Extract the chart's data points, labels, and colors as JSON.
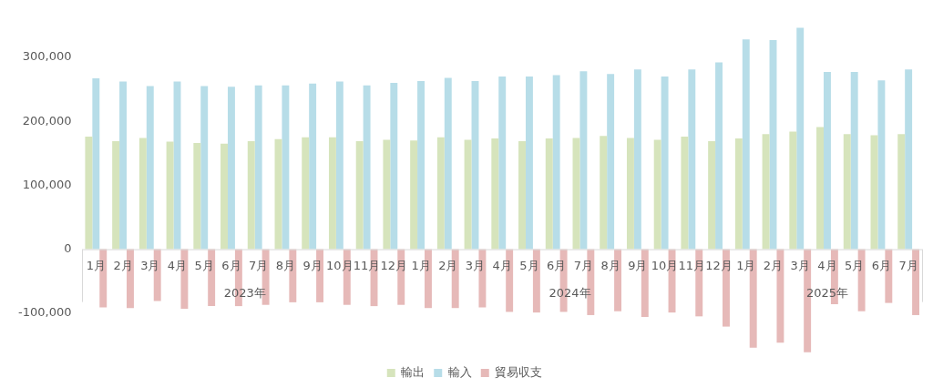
{
  "chart_data": {
    "type": "bar",
    "categories": [
      "1月",
      "2月",
      "3月",
      "4月",
      "5月",
      "6月",
      "7月",
      "8月",
      "9月",
      "10月",
      "11月",
      "12月",
      "1月",
      "2月",
      "3月",
      "4月",
      "5月",
      "6月",
      "7月",
      "8月",
      "9月",
      "10月",
      "11月",
      "12月",
      "1月",
      "2月",
      "3月",
      "4月",
      "5月",
      "6月",
      "7月"
    ],
    "annotations": [
      "2023年",
      "2024年",
      "2025年"
    ],
    "series": [
      {
        "name": "輸出",
        "color": "#d6e4bc",
        "values": [
          176000,
          169000,
          174000,
          168000,
          166000,
          165000,
          169000,
          172000,
          175000,
          175000,
          169000,
          171000,
          170000,
          175000,
          171000,
          173000,
          169000,
          173000,
          174000,
          177000,
          174000,
          171000,
          176000,
          169000,
          173000,
          180000,
          184000,
          191000,
          180000,
          178000,
          180000
        ]
      },
      {
        "name": "輸入",
        "color": "#b7dde8",
        "values": [
          267000,
          262000,
          255000,
          262000,
          255000,
          254000,
          256000,
          256000,
          259000,
          262000,
          256000,
          260000,
          263000,
          268000,
          263000,
          270000,
          270000,
          272000,
          278000,
          274000,
          281000,
          270000,
          281000,
          292000,
          328000,
          327000,
          346000,
          277000,
          277000,
          264000,
          281000
        ]
      },
      {
        "name": "貿易収支",
        "color": "#e6b9b8",
        "values": [
          -91000,
          -92000,
          -81000,
          -93000,
          -89000,
          -89000,
          -87000,
          -83000,
          -83000,
          -87000,
          -89000,
          -87000,
          -92000,
          -92000,
          -91000,
          -98000,
          -99000,
          -98000,
          -103000,
          -97000,
          -106000,
          -99000,
          -105000,
          -121000,
          -154000,
          -146000,
          -161000,
          -86000,
          -97000,
          -84000,
          -103000
        ]
      }
    ],
    "ylim": [
      -170000,
      350000
    ],
    "yticks": [
      {
        "value": -100000,
        "label": "-100,000"
      },
      0,
      {
        "value": 100000,
        "label": "100,000"
      },
      {
        "value": 200000,
        "label": "200,000"
      },
      {
        "value": 300000,
        "label": "300,000"
      }
    ],
    "grid": false,
    "legend": "bottom"
  }
}
